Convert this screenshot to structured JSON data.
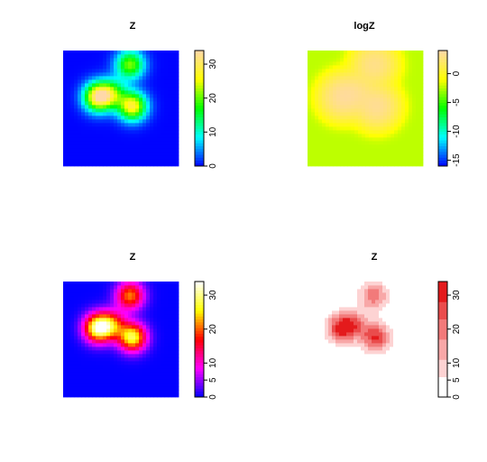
{
  "chart_data": [
    {
      "type": "heatmap",
      "title": "Z",
      "palette": "rainbow",
      "colors": [
        "#0000ff",
        "#00ffff",
        "#00ff00",
        "#ffff00",
        "#ffd8a8"
      ],
      "zlim": [
        0,
        34
      ],
      "colorbar_ticks": [
        0,
        10,
        20,
        30
      ],
      "peaks": [
        {
          "x": 0.3,
          "y": 0.6,
          "height": 30
        },
        {
          "x": 0.58,
          "y": 0.88,
          "height": 21
        },
        {
          "x": 0.6,
          "y": 0.52,
          "height": 28
        },
        {
          "x": 0.42,
          "y": 0.63,
          "height": 17
        }
      ]
    },
    {
      "type": "heatmap",
      "title": "logZ",
      "palette": "rainbow",
      "colors": [
        "#0000ff",
        "#00ffff",
        "#00ff00",
        "#ffff00",
        "#ffd8a8"
      ],
      "zlim": [
        -16,
        4
      ],
      "colorbar_ticks": [
        0,
        -5,
        -10,
        -15
      ]
    },
    {
      "type": "heatmap",
      "title": "Z",
      "palette": "topo",
      "colors": [
        "#0000ff",
        "#ff00ff",
        "#ff0000",
        "#ffff00",
        "#ffffff"
      ],
      "zlim": [
        0,
        34
      ],
      "colorbar_ticks": [
        0,
        5,
        10,
        20,
        30
      ]
    },
    {
      "type": "heatmap",
      "title": "Z",
      "palette": "reds",
      "colors": [
        "#ffffff",
        "#fdd3d3",
        "#f8a7a7",
        "#f27a7a",
        "#ea4c4c",
        "#e41a1c"
      ],
      "zlim": [
        0,
        34
      ],
      "colorbar_ticks": [
        0,
        5,
        10,
        20,
        30
      ]
    }
  ]
}
